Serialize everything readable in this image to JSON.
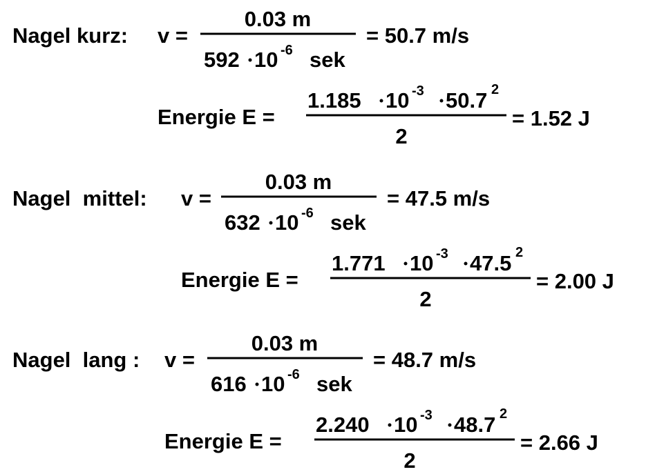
{
  "blocks": [
    {
      "label": "Nagel kurz:",
      "v": {
        "lhs": "v =",
        "num": "0.03 m",
        "den_coef": "592",
        "den_base": "10",
        "den_exp": "-6",
        "den_unit": "sek",
        "result": "= 50.7 m/s"
      },
      "energy": {
        "lhs": "Energie E =",
        "mass": "1.185",
        "base": "10",
        "exp": "-3",
        "speed": "50.7",
        "power": "2",
        "den": "2",
        "result": "= 1.52 J"
      }
    },
    {
      "label": "Nagel  mittel:",
      "v": {
        "lhs": "v =",
        "num": "0.03 m",
        "den_coef": "632",
        "den_base": "10",
        "den_exp": "-6",
        "den_unit": "sek",
        "result": "= 47.5 m/s"
      },
      "energy": {
        "lhs": "Energie E =",
        "mass": "1.771",
        "base": "10",
        "exp": "-3",
        "speed": "47.5",
        "power": "2",
        "den": "2",
        "result": "= 2.00 J"
      }
    },
    {
      "label": "Nagel  lang :",
      "v": {
        "lhs": "v =",
        "num": "0.03 m",
        "den_coef": "616",
        "den_base": "10",
        "den_exp": "-6",
        "den_unit": "sek",
        "result": "= 48.7 m/s"
      },
      "energy": {
        "lhs": "Energie E =",
        "mass": "2.240",
        "base": "10",
        "exp": "-3",
        "speed": "48.7",
        "power": "2",
        "den": "2",
        "result": "= 2.66 J"
      }
    }
  ]
}
